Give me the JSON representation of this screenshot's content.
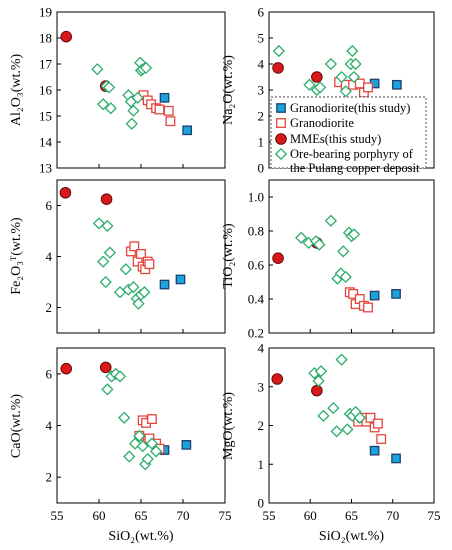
{
  "figure": {
    "x_axis_label": "SiO₂(wt.%)",
    "x_range": [
      55,
      75
    ],
    "x_ticks": [
      55,
      60,
      65,
      70,
      75
    ]
  },
  "legend": {
    "placement": "inside Na2O panel, lower half",
    "items": [
      {
        "key": "granodiorite_study",
        "label": "Granodiorite(this study)"
      },
      {
        "key": "granodiorite",
        "label": "Granodiorite"
      },
      {
        "key": "mmes",
        "label": "MMEs(this study)"
      },
      {
        "key": "porphyry",
        "label": "Ore-bearing porphyry of",
        "label2": "the Pulang copper deposit"
      }
    ]
  },
  "styles": {
    "granodiorite_study": {
      "shape": "square",
      "fill": "#1aa3dc",
      "stroke": "#1f3f6e"
    },
    "granodiorite": {
      "shape": "square",
      "fill": "#ffffff",
      "stroke": "#e3463c"
    },
    "mmes": {
      "shape": "circle",
      "fill": "#d7191c",
      "stroke": "#6b0a0a"
    },
    "porphyry": {
      "shape": "diamond",
      "fill": "#ffffff",
      "stroke": "#2cac6a"
    }
  },
  "chart_data": [
    {
      "type": "scatter",
      "ylabel": "Al₂O₃(wt.%)",
      "ylim": [
        13,
        19
      ],
      "yticks": [
        13,
        14,
        15,
        16,
        17,
        18,
        19
      ],
      "series": [
        {
          "key": "granodiorite_study",
          "x": [
            67.8,
            70.5
          ],
          "y": [
            15.7,
            14.45
          ]
        },
        {
          "key": "granodiorite",
          "x": [
            65.3,
            65.8,
            66.2,
            66.8,
            67.2,
            68.3,
            68.5
          ],
          "y": [
            15.8,
            15.6,
            15.45,
            15.3,
            15.25,
            15.2,
            14.8
          ]
        },
        {
          "key": "mmes",
          "x": [
            56.1,
            60.8
          ],
          "y": [
            18.05,
            16.15
          ]
        },
        {
          "key": "porphyry",
          "x": [
            59.8,
            60.5,
            60.9,
            61.2,
            61.4,
            63.5,
            63.8,
            63.9,
            64.1,
            64.6,
            64.9,
            65.0,
            65.2,
            65.6
          ],
          "y": [
            16.8,
            15.45,
            16.15,
            16.1,
            15.3,
            15.8,
            15.55,
            14.7,
            15.2,
            15.7,
            17.05,
            16.75,
            16.8,
            16.85
          ]
        }
      ]
    },
    {
      "type": "scatter",
      "ylabel": "Na₂O(wt.%)",
      "ylim": [
        0,
        6
      ],
      "yticks": [
        0,
        1,
        2,
        3,
        4,
        5,
        6
      ],
      "series": [
        {
          "key": "granodiorite_study",
          "x": [
            67.8,
            70.5
          ],
          "y": [
            3.25,
            3.2
          ]
        },
        {
          "key": "granodiorite",
          "x": [
            63.5,
            64.3,
            65.2,
            66.0,
            66.5,
            67.0
          ],
          "y": [
            3.3,
            3.2,
            3.2,
            3.25,
            2.9,
            3.1
          ]
        },
        {
          "key": "mmes",
          "x": [
            56.1,
            60.8
          ],
          "y": [
            3.85,
            3.5
          ]
        },
        {
          "key": "porphyry",
          "x": [
            56.2,
            59.9,
            60.8,
            61.2,
            62.5,
            63.8,
            64.3,
            64.9,
            65.1,
            65.3,
            65.5
          ],
          "y": [
            4.5,
            3.2,
            3.0,
            3.1,
            4.0,
            3.5,
            2.95,
            4.0,
            4.5,
            3.5,
            4.0
          ]
        }
      ]
    },
    {
      "type": "scatter",
      "ylabel": "Fe₂O₃ᵀ(wt.%)",
      "ylim": [
        1,
        7
      ],
      "yticks": [
        2,
        4,
        6
      ],
      "series": [
        {
          "key": "granodiorite_study",
          "x": [
            67.8,
            69.7
          ],
          "y": [
            2.9,
            3.1
          ]
        },
        {
          "key": "granodiorite",
          "x": [
            63.8,
            64.2,
            64.6,
            65.0,
            65.2,
            65.5,
            65.8,
            66.0
          ],
          "y": [
            4.2,
            4.4,
            3.8,
            4.1,
            3.6,
            3.5,
            3.8,
            3.7
          ]
        },
        {
          "key": "mmes",
          "x": [
            56.0,
            60.9
          ],
          "y": [
            6.5,
            6.25
          ]
        },
        {
          "key": "porphyry",
          "x": [
            60.0,
            60.5,
            60.8,
            61.0,
            61.3,
            62.5,
            63.2,
            63.5,
            64.1,
            64.5,
            64.7,
            65.0,
            65.4
          ],
          "y": [
            5.3,
            3.8,
            3.0,
            5.2,
            4.15,
            2.6,
            3.5,
            2.7,
            2.8,
            2.35,
            2.15,
            2.5,
            2.6
          ]
        }
      ]
    },
    {
      "type": "scatter",
      "ylabel": "TiO₂(wt.%)",
      "ylim": [
        0.2,
        1.1
      ],
      "yticks": [
        0.2,
        0.4,
        0.6,
        0.8,
        1.0
      ],
      "series": [
        {
          "key": "granodiorite_study",
          "x": [
            67.8,
            70.4
          ],
          "y": [
            0.42,
            0.43
          ]
        },
        {
          "key": "granodiorite",
          "x": [
            64.8,
            65.2,
            65.5,
            66.0,
            66.5,
            67.0
          ],
          "y": [
            0.44,
            0.43,
            0.37,
            0.4,
            0.36,
            0.35
          ]
        },
        {
          "key": "mmes",
          "x": [
            56.1,
            60.8
          ],
          "y": [
            0.64,
            0.73
          ]
        },
        {
          "key": "porphyry",
          "x": [
            58.9,
            59.8,
            60.7,
            61.1,
            62.5,
            63.3,
            63.7,
            64.0,
            64.3,
            64.7,
            65.0,
            65.3
          ],
          "y": [
            0.76,
            0.73,
            0.74,
            0.72,
            0.86,
            0.52,
            0.55,
            0.68,
            0.53,
            0.79,
            0.77,
            0.78
          ]
        }
      ]
    },
    {
      "type": "scatter",
      "ylabel": "CaO(wt.%)",
      "ylim": [
        1,
        7
      ],
      "yticks": [
        2,
        4,
        6
      ],
      "series": [
        {
          "key": "granodiorite_study",
          "x": [
            67.8,
            70.4
          ],
          "y": [
            3.05,
            3.25
          ]
        },
        {
          "key": "granodiorite",
          "x": [
            64.8,
            65.2,
            65.6,
            66.0,
            66.3,
            66.8,
            67.2
          ],
          "y": [
            3.6,
            4.2,
            4.1,
            3.5,
            4.25,
            3.3,
            3.1
          ]
        },
        {
          "key": "mmes",
          "x": [
            56.1,
            60.8
          ],
          "y": [
            6.2,
            6.25
          ]
        },
        {
          "key": "porphyry",
          "x": [
            61.0,
            61.5,
            62.0,
            62.5,
            63.0,
            63.6,
            64.3,
            64.8,
            65.2,
            65.5,
            65.8,
            66.3,
            66.8
          ],
          "y": [
            5.4,
            5.9,
            6.0,
            5.9,
            4.3,
            2.8,
            3.3,
            3.6,
            3.2,
            2.5,
            2.7,
            3.3,
            3.0
          ]
        }
      ]
    },
    {
      "type": "scatter",
      "ylabel": "MgO(wt.%)",
      "ylim": [
        0,
        4
      ],
      "yticks": [
        0,
        1,
        2,
        3,
        4
      ],
      "series": [
        {
          "key": "granodiorite_study",
          "x": [
            67.8,
            70.4
          ],
          "y": [
            1.35,
            1.15
          ]
        },
        {
          "key": "granodiorite",
          "x": [
            65.8,
            66.3,
            66.8,
            67.3,
            67.8,
            68.2,
            68.6
          ],
          "y": [
            2.1,
            2.2,
            2.1,
            2.2,
            1.95,
            2.05,
            1.65
          ]
        },
        {
          "key": "mmes",
          "x": [
            56.0,
            60.8
          ],
          "y": [
            3.2,
            2.9
          ]
        },
        {
          "key": "porphyry",
          "x": [
            60.5,
            61.0,
            61.3,
            61.6,
            62.8,
            63.2,
            63.8,
            64.5,
            64.8,
            65.1,
            65.5,
            66.0
          ],
          "y": [
            3.35,
            3.15,
            3.4,
            2.25,
            2.45,
            1.85,
            3.7,
            1.9,
            2.3,
            2.25,
            2.35,
            2.2
          ]
        }
      ]
    }
  ]
}
